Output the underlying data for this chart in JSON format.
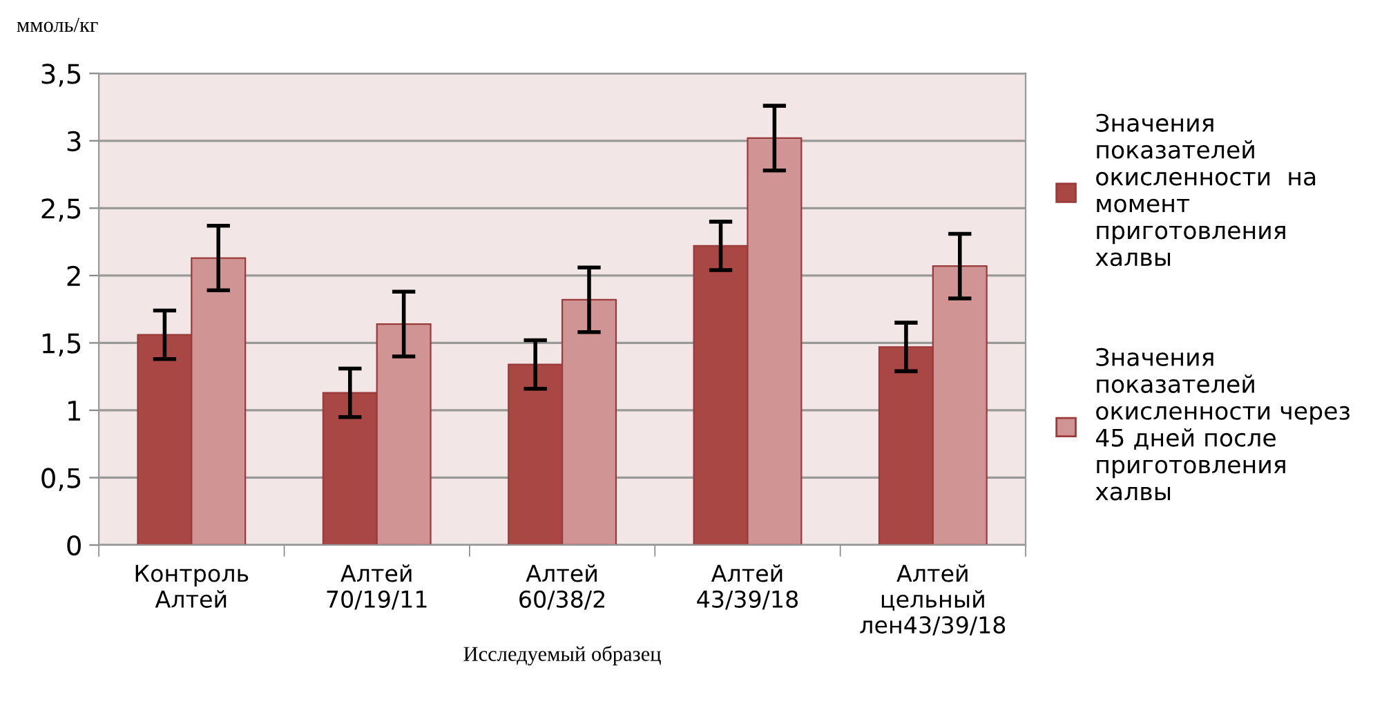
{
  "chart_data": {
    "type": "bar",
    "ylabel": "ммоль/кг",
    "xlabel": "Исследуемый образец",
    "categories": [
      "Контроль\nАлтей",
      "Алтей\n70/19/11",
      "Алтей\n60/38/2",
      "Алтей\n43/39/18",
      "Алтей\nцельный\nлен43/39/18"
    ],
    "series": [
      {
        "name": "Значения\nпоказателей\nокисленности  на\nмомент\nприготовления\nхалвы",
        "color": "#a94745",
        "values": [
          1.56,
          1.13,
          1.34,
          2.22,
          1.47
        ],
        "errors": [
          0.18,
          0.18,
          0.18,
          0.18,
          0.18
        ]
      },
      {
        "name": "Значения\nпоказателей\nокисленности через\n45 дней после\nприготовления\nхалвы",
        "color": "#d19494",
        "values": [
          2.13,
          1.64,
          1.82,
          3.02,
          2.07
        ],
        "errors": [
          0.24,
          0.24,
          0.24,
          0.24,
          0.24
        ]
      }
    ],
    "ylim": [
      0,
      3.5
    ],
    "yticks": [
      0,
      {
        "value": 0.5,
        "label": "0,5"
      },
      1,
      {
        "value": 1.5,
        "label": "1,5"
      },
      2,
      {
        "value": 2.5,
        "label": "2,5"
      },
      3,
      {
        "value": 3.5,
        "label": "3,5"
      }
    ],
    "grid": "y",
    "legend": "right"
  }
}
